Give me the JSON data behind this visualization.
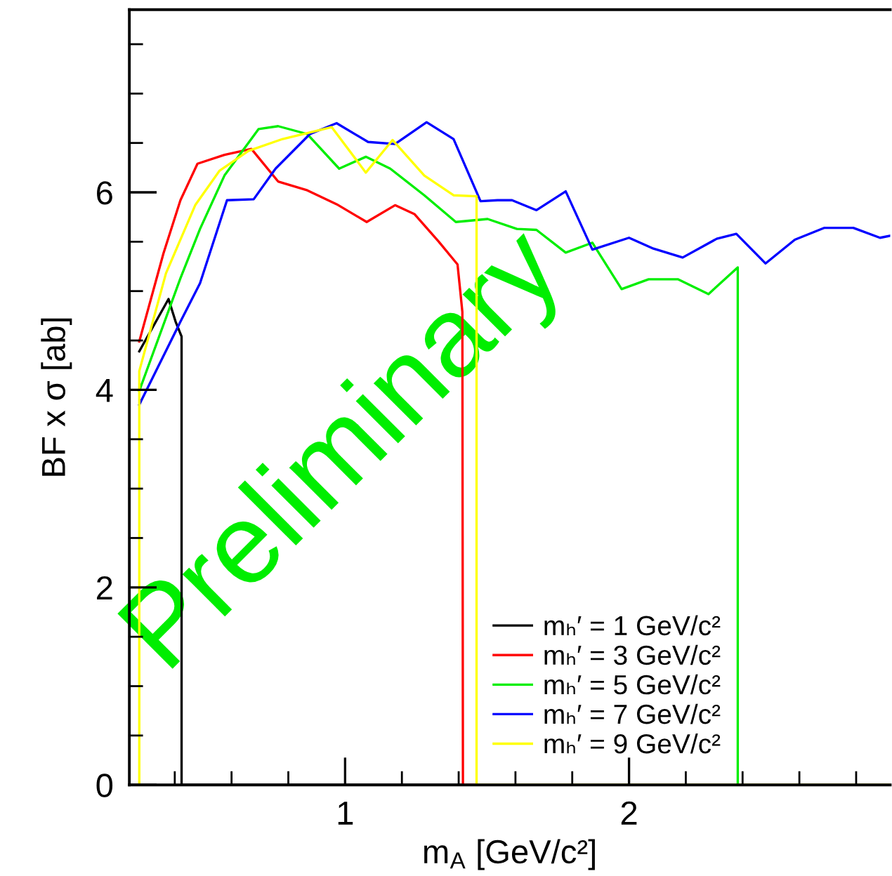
{
  "chart_data": {
    "type": "line",
    "xlabel": "m$_{A}$ [GeV/c²]",
    "ylabel": "BF x σ [ab]",
    "xlim": [
      0.24,
      2.92
    ],
    "ylim": [
      0,
      7.85
    ],
    "xticks": [
      {
        "value": 0.4,
        "label": null
      },
      {
        "value": 0.6,
        "label": null
      },
      {
        "value": 0.8,
        "label": null
      },
      1,
      {
        "value": 1.2,
        "label": null
      },
      {
        "value": 1.4,
        "label": null
      },
      {
        "value": 1.6,
        "label": null
      },
      {
        "value": 1.8,
        "label": null
      },
      2,
      {
        "value": 2.2,
        "label": null
      },
      {
        "value": 2.4,
        "label": null
      },
      {
        "value": 2.6,
        "label": null
      },
      {
        "value": 2.8,
        "label": null
      }
    ],
    "yticks": [
      0,
      {
        "value": 0.5,
        "label": null
      },
      {
        "value": 1,
        "label": null
      },
      {
        "value": 1.5,
        "label": null
      },
      2,
      {
        "value": 2.5,
        "label": null
      },
      {
        "value": 3,
        "label": null
      },
      {
        "value": 3.5,
        "label": null
      },
      4,
      {
        "value": 4.5,
        "label": null
      },
      {
        "value": 5,
        "label": null
      },
      {
        "value": 5.5,
        "label": null
      },
      6,
      {
        "value": 6.5,
        "label": null
      },
      {
        "value": 7,
        "label": null
      },
      {
        "value": 7.5,
        "label": null
      }
    ],
    "grid": false,
    "legend": "bottom",
    "marker": "none",
    "line_style": "solid",
    "annotations": [
      "Preliminary"
    ],
    "series": [
      {
        "name": "mₕ′ = 1 GeV/c²",
        "color": "#000000",
        "x": [
          0.275,
          0.378,
          0.403,
          0.424,
          0.424,
          1.415
        ],
        "values": [
          4.39,
          4.92,
          4.69,
          4.54,
          0,
          0
        ]
      },
      {
        "name": "mₕ′ = 3 GeV/c²",
        "color": "#ff0000",
        "x": [
          0.275,
          0.36,
          0.42,
          0.48,
          0.575,
          0.67,
          0.764,
          0.867,
          0.97,
          1.076,
          1.176,
          1.244,
          1.33,
          1.396,
          1.413,
          1.415,
          1.463
        ],
        "values": [
          4.49,
          5.38,
          5.92,
          6.29,
          6.38,
          6.44,
          6.11,
          6.02,
          5.88,
          5.7,
          5.87,
          5.78,
          5.5,
          5.27,
          4.79,
          0,
          0
        ]
      },
      {
        "name": "mₕ′ = 5 GeV/c²",
        "color": "#00ee00",
        "x": [
          0.275,
          0.42,
          0.489,
          0.575,
          0.695,
          0.764,
          0.867,
          0.979,
          1.073,
          1.159,
          1.279,
          1.39,
          1.502,
          1.605,
          1.674,
          1.777,
          1.871,
          1.974,
          2.069,
          2.172,
          2.28,
          2.383,
          2.383
        ],
        "values": [
          3.99,
          5.13,
          5.63,
          6.17,
          6.64,
          6.67,
          6.59,
          6.24,
          6.36,
          6.24,
          5.97,
          5.7,
          5.73,
          5.63,
          5.62,
          5.39,
          5.49,
          5.02,
          5.12,
          5.12,
          4.97,
          5.24,
          0
        ]
      },
      {
        "name": "mₕ′ = 7 GeV/c²",
        "color": "#0000ff",
        "x": [
          0.275,
          0.42,
          0.489,
          0.584,
          0.678,
          0.755,
          0.876,
          0.97,
          1.081,
          1.176,
          1.287,
          1.382,
          1.477,
          1.537,
          1.588,
          1.674,
          1.777,
          1.871,
          2.0,
          2.086,
          2.189,
          2.309,
          2.378,
          2.481,
          2.584,
          2.687,
          2.79,
          2.884,
          2.92
        ],
        "values": [
          3.85,
          4.69,
          5.08,
          5.92,
          5.93,
          6.24,
          6.59,
          6.7,
          6.51,
          6.49,
          6.71,
          6.54,
          5.91,
          5.92,
          5.92,
          5.82,
          6.01,
          5.42,
          5.54,
          5.43,
          5.34,
          5.53,
          5.58,
          5.28,
          5.52,
          5.64,
          5.64,
          5.54,
          5.56
        ]
      },
      {
        "name": "mₕ′ = 9 GeV/c²",
        "color": "#ffff00",
        "x": [
          0.275,
          0.275,
          0.369,
          0.472,
          0.558,
          0.66,
          0.78,
          0.953,
          1.073,
          1.167,
          1.279,
          1.382,
          1.463,
          1.463,
          2.92
        ],
        "values": [
          0,
          4.19,
          5.18,
          5.87,
          6.22,
          6.42,
          6.54,
          6.66,
          6.2,
          6.53,
          6.17,
          5.97,
          5.96,
          0,
          0
        ]
      }
    ]
  }
}
